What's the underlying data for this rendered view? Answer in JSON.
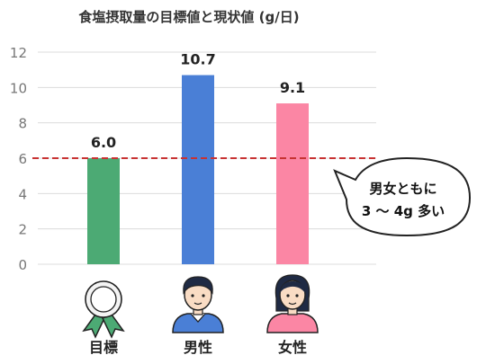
{
  "chart_data": {
    "type": "bar",
    "title": "食塩摂取量の目標値と現状値 (g/日)",
    "categories": [
      "目標",
      "男性",
      "女性"
    ],
    "values": [
      6.0,
      10.7,
      9.1
    ],
    "value_labels": [
      "6.0",
      "10.7",
      "9.1"
    ],
    "colors": [
      "#4caa74",
      "#4a7fd6",
      "#fb86a4"
    ],
    "ylim": [
      0,
      12
    ],
    "yticks": [
      0,
      2,
      4,
      6,
      8,
      10,
      12
    ],
    "grid": true,
    "reference_line": {
      "value": 6,
      "color": "#c83232",
      "style": "dashed"
    },
    "category_icons": [
      "award-ribbon-icon",
      "man-icon",
      "woman-icon"
    ],
    "annotation": {
      "lines": [
        "男女ともに",
        "3 ～ 4g 多い"
      ]
    }
  }
}
